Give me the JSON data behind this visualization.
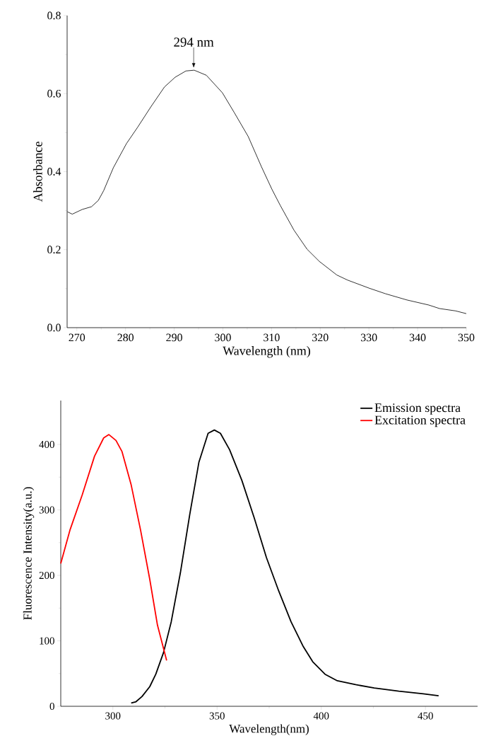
{
  "chart_data": [
    {
      "type": "line",
      "xlabel": "Wavelength (nm)",
      "ylabel": "Absorbance",
      "xlim": [
        268,
        350
      ],
      "ylim": [
        0,
        0.8
      ],
      "xticks": [
        270,
        280,
        290,
        300,
        310,
        320,
        330,
        340,
        350
      ],
      "yticks": [
        {
          "value": 0,
          "label": "0.0"
        },
        0.2,
        0.4,
        0.6,
        0.8
      ],
      "annotations": [
        {
          "text": "294 nm",
          "x": 294,
          "y": 0.66
        }
      ],
      "series": [
        {
          "color": "#000000",
          "x": [
            268.06,
            269.06,
            271.1,
            273.0,
            274.4,
            275.5,
            277.5,
            280.2,
            282.5,
            285.2,
            288.0,
            290.2,
            292.4,
            294.1,
            296.6,
            299.9,
            302.4,
            305.2,
            307.9,
            310.1,
            311.8,
            314.6,
            317.3,
            319.8,
            323.4,
            325.6,
            330.1,
            333.4,
            337.8,
            342.3,
            344.5,
            347.8,
            350.0
          ],
          "values": [
            0.297,
            0.291,
            0.303,
            0.31,
            0.326,
            0.351,
            0.41,
            0.472,
            0.514,
            0.566,
            0.617,
            0.642,
            0.658,
            0.66,
            0.647,
            0.602,
            0.55,
            0.49,
            0.413,
            0.354,
            0.313,
            0.25,
            0.201,
            0.17,
            0.135,
            0.122,
            0.101,
            0.087,
            0.071,
            0.058,
            0.049,
            0.043,
            0.036
          ]
        }
      ]
    },
    {
      "type": "line",
      "xlabel": "Wavelength(nm)",
      "ylabel": "Fluorescence Intensity(a.u.)",
      "xlim": [
        275,
        475
      ],
      "ylim": [
        0,
        467
      ],
      "xticks": [
        300,
        350,
        400,
        450
      ],
      "yticks": [
        0,
        100,
        200,
        300,
        400
      ],
      "legend": "top right",
      "series": [
        {
          "name": "Emission spectra",
          "color": "#000000",
          "x": [
            308.8,
            311.1,
            314.0,
            317.7,
            320.6,
            324.3,
            328.0,
            332.4,
            336.9,
            341.3,
            345.7,
            348.7,
            351.6,
            356.0,
            361.9,
            367.8,
            373.7,
            379.6,
            385.5,
            391.4,
            395.9,
            401.8,
            407.7,
            416.5,
            425.4,
            437.2,
            449.0,
            456.3
          ],
          "values": [
            5,
            7,
            15,
            30,
            49,
            82,
            129,
            204,
            293,
            373,
            417,
            422,
            417,
            392,
            345,
            288,
            227,
            176,
            129,
            91,
            68,
            49,
            39,
            33,
            28,
            23,
            19,
            16
          ]
        },
        {
          "name": "Excitation spectra",
          "color": "#ff0000",
          "x": [
            275.0,
            279.4,
            285.3,
            291.2,
            295.6,
            298.1,
            301.5,
            304.4,
            308.8,
            313.3,
            317.7,
            321.4,
            325.8
          ],
          "values": [
            218,
            269,
            323,
            382,
            410,
            415,
            406,
            389,
            338,
            269,
            194,
            124,
            70
          ]
        }
      ]
    }
  ]
}
